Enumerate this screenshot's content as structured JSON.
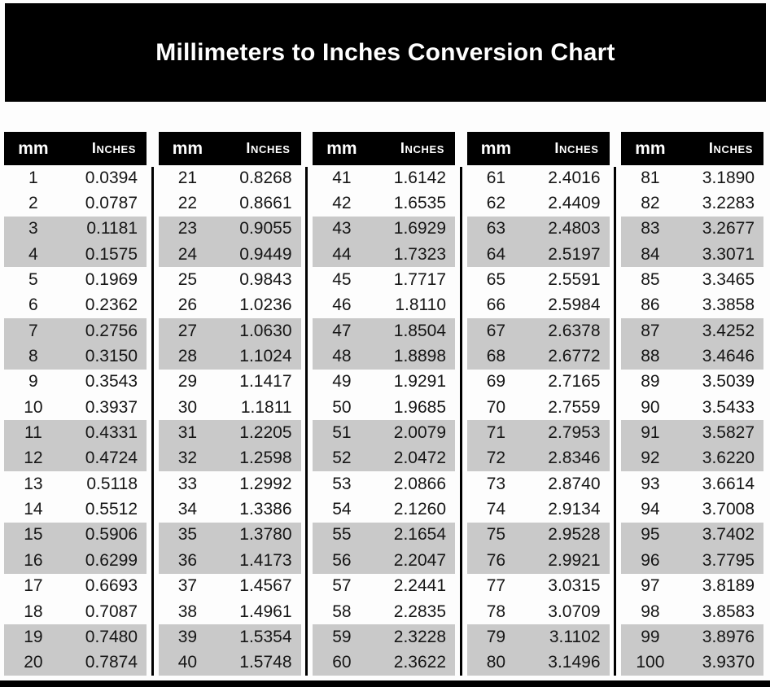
{
  "title": "Millimeters to Inches Conversion Chart",
  "colors": {
    "title_band": "#000000",
    "header_bg": "#000000",
    "header_text": "#ffffff",
    "stripe_gray": "#c9c9c9",
    "page_bg": "#fdfdfd",
    "data_text": "#161616"
  },
  "chart_data": {
    "type": "table",
    "title": "Millimeters to Inches Conversion Chart",
    "columns": [
      "mm",
      "Inches"
    ],
    "layout": "5 side-by-side sub-tables of 20 rows each; rows shaded gray in alternating pairs; black vertical dividers between sub-tables",
    "mm": [
      "1",
      "2",
      "3",
      "4",
      "5",
      "6",
      "7",
      "8",
      "9",
      "10",
      "11",
      "12",
      "13",
      "14",
      "15",
      "16",
      "17",
      "18",
      "19",
      "20",
      "21",
      "22",
      "23",
      "24",
      "25",
      "26",
      "27",
      "28",
      "29",
      "30",
      "31",
      "32",
      "33",
      "34",
      "35",
      "36",
      "37",
      "38",
      "39",
      "40",
      "41",
      "42",
      "43",
      "44",
      "45",
      "46",
      "47",
      "48",
      "49",
      "50",
      "51",
      "52",
      "53",
      "54",
      "55",
      "56",
      "57",
      "58",
      "59",
      "60",
      "61",
      "62",
      "63",
      "64",
      "65",
      "66",
      "67",
      "68",
      "69",
      "70",
      "71",
      "72",
      "73",
      "74",
      "75",
      "76",
      "77",
      "78",
      "79",
      "80",
      "81",
      "82",
      "83",
      "84",
      "85",
      "86",
      "87",
      "88",
      "89",
      "90",
      "91",
      "92",
      "93",
      "94",
      "95",
      "96",
      "97",
      "98",
      "99",
      "100"
    ],
    "inches": [
      "0.0394",
      "0.0787",
      "0.1181",
      "0.1575",
      "0.1969",
      "0.2362",
      "0.2756",
      "0.3150",
      "0.3543",
      "0.3937",
      "0.4331",
      "0.4724",
      "0.5118",
      "0.5512",
      "0.5906",
      "0.6299",
      "0.6693",
      "0.7087",
      "0.7480",
      "0.7874",
      "0.8268",
      "0.8661",
      "0.9055",
      "0.9449",
      "0.9843",
      "1.0236",
      "1.0630",
      "1.1024",
      "1.1417",
      "1.1811",
      "1.2205",
      "1.2598",
      "1.2992",
      "1.3386",
      "1.3780",
      "1.4173",
      "1.4567",
      "1.4961",
      "1.5354",
      "1.5748",
      "1.6142",
      "1.6535",
      "1.6929",
      "1.7323",
      "1.7717",
      "1.8110",
      "1.8504",
      "1.8898",
      "1.9291",
      "1.9685",
      "2.0079",
      "2.0472",
      "2.0866",
      "2.1260",
      "2.1654",
      "2.2047",
      "2.2441",
      "2.2835",
      "2.3228",
      "2.3622",
      "2.4016",
      "2.4409",
      "2.4803",
      "2.5197",
      "2.5591",
      "2.5984",
      "2.6378",
      "2.6772",
      "2.7165",
      "2.7559",
      "2.7953",
      "2.8346",
      "2.8740",
      "2.9134",
      "2.9528",
      "2.9921",
      "3.0315",
      "3.0709",
      "3.1102",
      "3.1496",
      "3.1890",
      "3.2283",
      "3.2677",
      "3.3071",
      "3.3465",
      "3.3858",
      "3.4252",
      "3.4646",
      "3.5039",
      "3.5433",
      "3.5827",
      "3.6220",
      "3.6614",
      "3.7008",
      "3.7402",
      "3.7795",
      "3.8189",
      "3.8583",
      "3.8976",
      "3.9370"
    ]
  }
}
